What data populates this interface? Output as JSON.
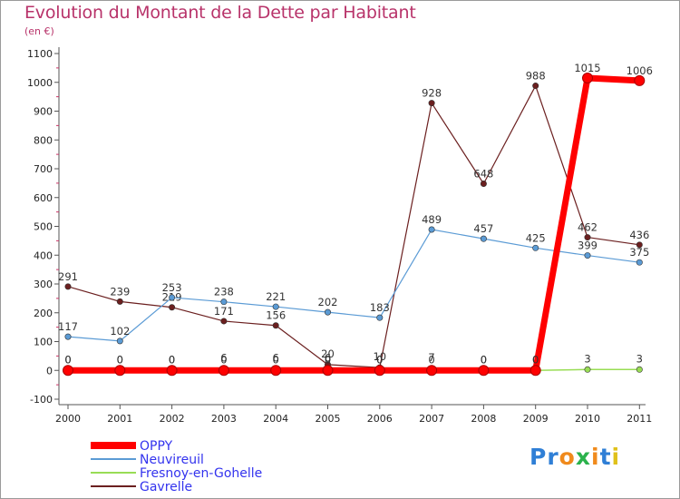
{
  "title": "Evolution du Montant de la Dette par Habitant",
  "unit": "(en €)",
  "brand": {
    "letters": [
      "P",
      "r",
      "o",
      "x",
      "i",
      "t",
      "i"
    ],
    "colors": [
      "#2f7fd6",
      "#2f7fd6",
      "#f08a1c",
      "#2bb24c",
      "#f08a1c",
      "#2f7fd6",
      "#e0c11a"
    ]
  },
  "chart_data": {
    "type": "line",
    "x": [
      "2000",
      "2001",
      "2002",
      "2003",
      "2004",
      "2005",
      "2006",
      "2007",
      "2008",
      "2009",
      "2010",
      "2011"
    ],
    "yticks": [
      "1100",
      "1000",
      "900",
      "800",
      "700",
      "600",
      "500",
      "400",
      "300",
      "200",
      "100",
      "0",
      "-100"
    ],
    "ylim": [
      -100,
      1100
    ],
    "grid": false,
    "legend_position": "bottom-left",
    "series": [
      {
        "name": "Gavrelle",
        "color": "#6b1f1f",
        "width": 1.2,
        "values": [
          291,
          239,
          219,
          171,
          156,
          20,
          10,
          928,
          648,
          988,
          462,
          436
        ],
        "labels": [
          "291",
          "239",
          "219",
          "171",
          "156",
          "20",
          "10",
          "928",
          "648",
          "988",
          "462",
          "436"
        ]
      },
      {
        "name": "Neuvireuil",
        "color": "#5b9bd5",
        "width": 1.2,
        "values": [
          117,
          102,
          253,
          238,
          221,
          202,
          183,
          489,
          457,
          425,
          399,
          375
        ],
        "labels": [
          "117",
          "102",
          "253",
          "238",
          "221",
          "202",
          "183",
          "489",
          "457",
          "425",
          "399",
          "375"
        ]
      },
      {
        "name": "Fresnoy-en-Gohelle",
        "color": "#99dd55",
        "width": 1.5,
        "values": [
          0,
          0,
          0,
          6,
          6,
          6,
          0,
          7,
          0,
          0,
          3,
          3
        ],
        "labels": [
          "0",
          "0",
          "0",
          "6",
          "6",
          "6",
          "0",
          "7",
          "0",
          "0",
          "3",
          "3"
        ]
      },
      {
        "name": "OPPY",
        "color": "#ff0000",
        "width": 7,
        "values": [
          0,
          0,
          0,
          0,
          0,
          0,
          0,
          0,
          0,
          0,
          1015,
          1006
        ],
        "labels": [
          "0",
          "0",
          "0",
          "0",
          "0",
          "0",
          "0",
          "0",
          "0",
          "0",
          "1015",
          "1006"
        ]
      }
    ],
    "legend": [
      "OPPY",
      "Neuvireuil",
      "Fresnoy-en-Gohelle",
      "Gavrelle"
    ]
  }
}
